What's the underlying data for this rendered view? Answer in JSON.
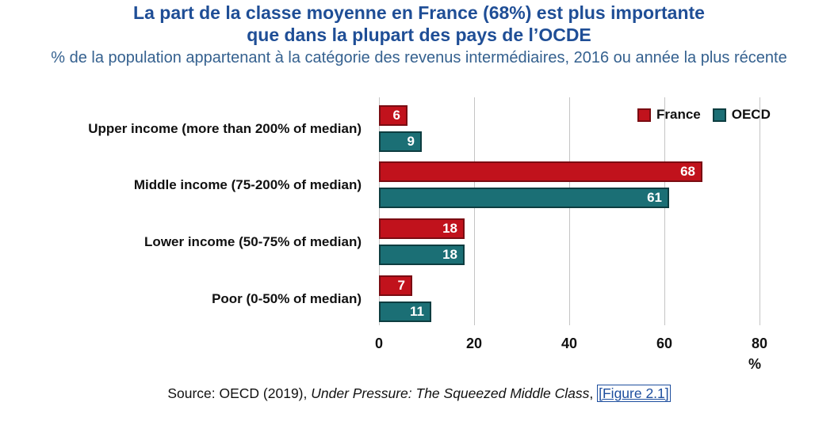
{
  "header": {
    "title_line1": "La part de la classe moyenne en France (68%) est plus importante",
    "title_line2": "que dans la plupart des pays de l’OCDE",
    "subtitle": "% de la population appartenant à la catégorie des revenus intermédiaires, 2016 ou année la plus récente"
  },
  "legend": {
    "france": "France",
    "oecd": "OECD"
  },
  "axis": {
    "unit": "%"
  },
  "colors": {
    "title_blue": "#1F4E96",
    "subtitle_blue": "#35618F",
    "france_fill": "#C1121C",
    "france_border": "#7A0C12",
    "oecd_fill": "#1B6F75",
    "oecd_border": "#0D3D40",
    "gridline": "#C4C4C4",
    "link_blue": "#1D4E9E"
  },
  "chart_data": {
    "type": "bar",
    "orientation": "horizontal",
    "title": "La part de la classe moyenne en France (68%) est plus importante que dans la plupart des pays de l’OCDE",
    "subtitle": "% de la population appartenant à la catégorie des revenus intermédiaires, 2016 ou année la plus récente",
    "categories": [
      "Upper income (more than 200% of median)",
      "Middle income (75-200% of median)",
      "Lower income (50-75% of median)",
      "Poor (0-50% of median)"
    ],
    "series": [
      {
        "name": "France",
        "color": "#C1121C",
        "values": [
          6,
          68,
          18,
          7
        ]
      },
      {
        "name": "OECD",
        "color": "#1B6F75",
        "values": [
          9,
          61,
          18,
          11
        ]
      }
    ],
    "xlim": [
      0,
      80
    ],
    "xticks": [
      0,
      20,
      40,
      60,
      80
    ],
    "unit": "%",
    "grid": "vertical-gridlines",
    "legend_position": "top-right",
    "value_labels": "inside bar end, white bold"
  },
  "source": {
    "prefix": "Source: OECD (2019), ",
    "italic": "Under Pressure: The Squeezed Middle Class",
    "separator": ", ",
    "link_text": "[Figure 2.1]"
  }
}
